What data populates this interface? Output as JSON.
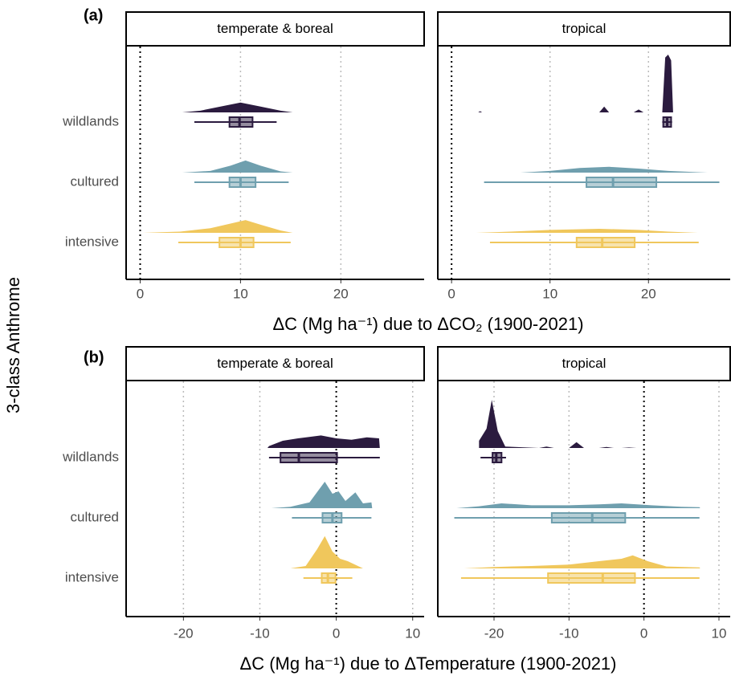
{
  "y_label": "3-class Anthrome",
  "chart_data": [
    {
      "type": "raincloud",
      "panel_label": "(a)",
      "x_label": "ΔC (Mg ha⁻¹) due to ΔCO₂ (1900-2021)",
      "categories": [
        "wildlands",
        "cultured",
        "intensive"
      ],
      "colors": [
        "#2b1b3f",
        "#6f9fae",
        "#f0c75c"
      ],
      "xlim": [
        -1.4,
        28.3
      ],
      "xticks": [
        0,
        10,
        20
      ],
      "reference_line": 0,
      "grid": true,
      "facets": [
        {
          "name": "temperate & boreal",
          "groups": [
            {
              "box": {
                "min": 5.4,
                "q1": 8.9,
                "median": 9.9,
                "q3": 11.2,
                "max": 13.6
              },
              "density": {
                "x": [
                  4.2,
                  6,
                  8,
                  10,
                  12,
                  14,
                  15.2
                ],
                "y": [
                  0,
                  0.03,
                  0.1,
                  0.17,
                  0.1,
                  0.03,
                  0
                ]
              }
            },
            {
              "box": {
                "min": 5.4,
                "q1": 8.9,
                "median": 10,
                "q3": 11.5,
                "max": 14.8
              },
              "density": {
                "x": [
                  4.2,
                  7,
                  9,
                  10.5,
                  12,
                  14,
                  15.2
                ],
                "y": [
                  0,
                  0.03,
                  0.12,
                  0.21,
                  0.12,
                  0.02,
                  0
                ]
              }
            },
            {
              "box": {
                "min": 3.8,
                "q1": 7.9,
                "median": 10,
                "q3": 11.3,
                "max": 15
              },
              "density": {
                "x": [
                  0.3,
                  2,
                  4,
                  7,
                  9,
                  10.5,
                  12,
                  14,
                  15.2
                ],
                "y": [
                  0,
                  0.01,
                  0.02,
                  0.08,
                  0.16,
                  0.22,
                  0.14,
                  0.04,
                  0
                ]
              }
            }
          ]
        },
        {
          "name": "tropical",
          "groups": [
            {
              "box": {
                "min": 21.4,
                "q1": 21.5,
                "median": 21.9,
                "q3": 22.3,
                "max": 22.4
              },
              "density": {
                "x": [
                  2.7,
                  2.9,
                  3.1,
                  15,
                  15.5,
                  16,
                  18.5,
                  19,
                  19.5,
                  21.4,
                  21.7,
                  22,
                  22.3,
                  22.5
                ],
                "y": [
                  0,
                  0.02,
                  0,
                  0,
                  0.1,
                  0,
                  0,
                  0.05,
                  0,
                  0,
                  0.95,
                  1,
                  0.9,
                  0
                ]
              }
            },
            {
              "box": {
                "min": 3.3,
                "q1": 13.7,
                "median": 16.4,
                "q3": 20.8,
                "max": 27.2
              },
              "density": {
                "x": [
                  7,
                  10,
                  13,
                  16,
                  19,
                  22,
                  26
                ],
                "y": [
                  0,
                  0.03,
                  0.08,
                  0.1,
                  0.07,
                  0.03,
                  0
                ]
              }
            },
            {
              "box": {
                "min": 3.9,
                "q1": 12.7,
                "median": 15.3,
                "q3": 18.6,
                "max": 25.1
              },
              "density": {
                "x": [
                  2.5,
                  6,
                  10,
                  15,
                  19,
                  22,
                  25
                ],
                "y": [
                  0,
                  0.02,
                  0.05,
                  0.07,
                  0.05,
                  0.02,
                  0
                ]
              }
            }
          ]
        }
      ]
    },
    {
      "type": "raincloud",
      "panel_label": "(b)",
      "x_label": "ΔC (Mg ha⁻¹) due to ΔTemperature (1900-2021)",
      "categories": [
        "wildlands",
        "cultured",
        "intensive"
      ],
      "colors": [
        "#2b1b3f",
        "#6f9fae",
        "#f0c75c"
      ],
      "xlim": [
        -27.5,
        11.5
      ],
      "xticks": [
        -20,
        -10,
        0,
        10
      ],
      "reference_line": 0,
      "grid": true,
      "facets": [
        {
          "name": "temperate & boreal",
          "groups": [
            {
              "box": {
                "min": -8.8,
                "q1": -7.3,
                "median": -4.9,
                "q3": 0.1,
                "max": 5.7
              },
              "density": {
                "x": [
                  -9,
                  -8.8,
                  -7,
                  -5,
                  -2,
                  0,
                  2,
                  4,
                  5.6,
                  5.7
                ],
                "y": [
                  0,
                  0.04,
                  0.15,
                  0.2,
                  0.26,
                  0.2,
                  0.17,
                  0.22,
                  0.2,
                  0
                ]
              }
            },
            {
              "box": {
                "min": -5.8,
                "q1": -1.8,
                "median": -0.5,
                "q3": 0.7,
                "max": 4.6
              },
              "density": {
                "x": [
                  -8.5,
                  -6,
                  -3.5,
                  -1.5,
                  -0.5,
                  0.3,
                  1.2,
                  2.5,
                  3.5,
                  4.6,
                  4.7
                ],
                "y": [
                  0,
                  0.03,
                  0.12,
                  0.55,
                  0.3,
                  0.35,
                  0.15,
                  0.33,
                  0.1,
                  0.12,
                  0
                ]
              }
            },
            {
              "box": {
                "min": -4.3,
                "q1": -1.9,
                "median": -1.1,
                "q3": -0.1,
                "max": 2.1
              },
              "density": {
                "x": [
                  -6,
                  -4,
                  -2.5,
                  -1.5,
                  -0.5,
                  0.5,
                  1.5,
                  3.5
                ],
                "y": [
                  0,
                  0.05,
                  0.4,
                  0.67,
                  0.35,
                  0.2,
                  0.15,
                  0
                ]
              }
            }
          ]
        },
        {
          "name": "tropical",
          "groups": [
            {
              "box": {
                "min": -21.8,
                "q1": -20.2,
                "median": -19.7,
                "q3": -19,
                "max": -18.4
              },
              "density": {
                "x": [
                  -22,
                  -21,
                  -20.3,
                  -19.5,
                  -18.5,
                  -14,
                  -13,
                  -12,
                  -10,
                  -9,
                  -8,
                  -6,
                  -5,
                  -4,
                  -3,
                  -2,
                  -1
                ],
                "y": [
                  0.15,
                  0.4,
                  1,
                  0.35,
                  0.03,
                  0,
                  0.03,
                  0,
                  0,
                  0.12,
                  0,
                  0,
                  0.02,
                  0,
                  0,
                  0.01,
                  0
                ]
              }
            },
            {
              "box": {
                "min": -25.3,
                "q1": -12.3,
                "median": -6.9,
                "q3": -2.5,
                "max": 7.4
              },
              "density": {
                "x": [
                  -25,
                  -22,
                  -19,
                  -15,
                  -10,
                  -6,
                  -3,
                  1,
                  5,
                  7.4,
                  7.5
                ],
                "y": [
                  0,
                  0.04,
                  0.1,
                  0.06,
                  0.06,
                  0.08,
                  0.1,
                  0.06,
                  0.03,
                  0.02,
                  0
                ]
              }
            },
            {
              "box": {
                "min": -24.4,
                "q1": -12.8,
                "median": -5.5,
                "q3": -1.2,
                "max": 7.4
              },
              "density": {
                "x": [
                  -24,
                  -20,
                  -15,
                  -10,
                  -6,
                  -3,
                  -1.5,
                  0.5,
                  3,
                  7.4,
                  7.5
                ],
                "y": [
                  0,
                  0.03,
                  0.05,
                  0.08,
                  0.15,
                  0.2,
                  0.27,
                  0.15,
                  0.04,
                  0.02,
                  0
                ]
              }
            }
          ]
        }
      ]
    }
  ]
}
